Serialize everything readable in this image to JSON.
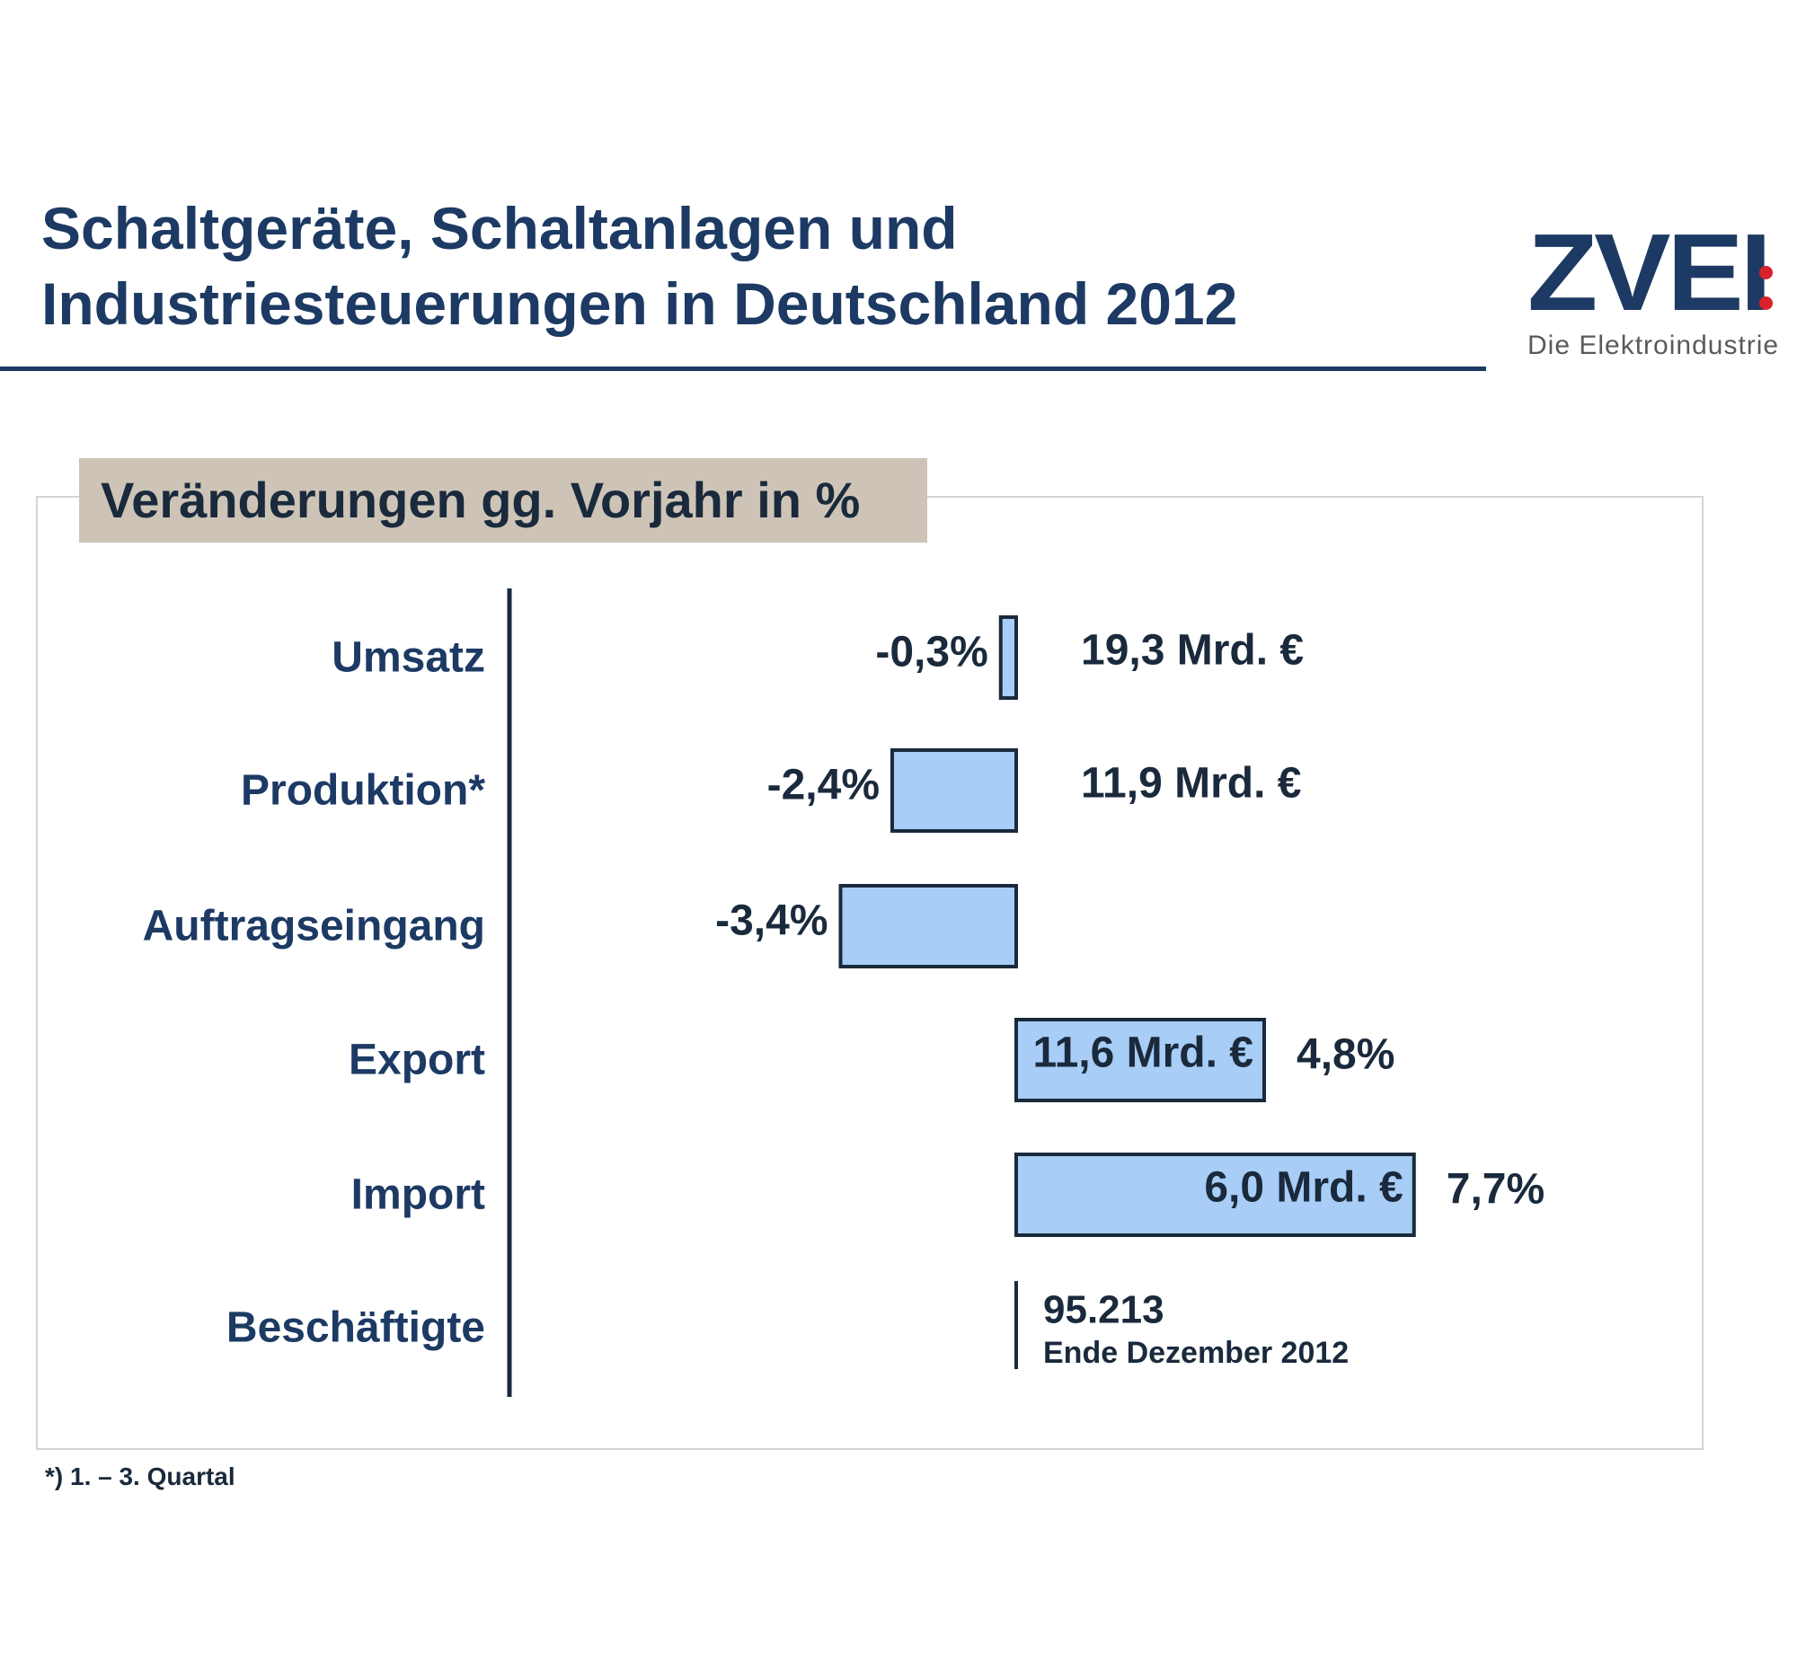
{
  "header": {
    "title_line1": "Schaltgeräte, Schaltanlagen und",
    "title_line2": "Industriesteuerungen in Deutschland 2012"
  },
  "logo": {
    "wordmark": "ZVEI",
    "tagline": "Die Elektroindustrie",
    "dot_color": "#d8222a"
  },
  "subtitle": "Veränderungen gg. Vorjahr in %",
  "footnote": "*) 1. – 3. Quartal",
  "colors": {
    "navy": "#1c3a63",
    "bar_fill": "#a8cdf6",
    "bar_stroke": "#1a2a3c",
    "subtitle_bg": "#cdc4b7"
  },
  "chart_data": {
    "type": "bar",
    "orientation": "horizontal",
    "categories": [
      "Umsatz",
      "Produktion*",
      "Auftragseingang",
      "Export",
      "Import",
      "Beschäftigte"
    ],
    "values": [
      -0.3,
      -2.4,
      -3.4,
      4.8,
      7.7,
      null
    ],
    "value_labels": [
      "-0,3%",
      "-2,4%",
      "-3,4%",
      "4,8%",
      "7,7%",
      ""
    ],
    "amount_labels": [
      "19,3 Mrd. €",
      "11,9 Mrd. €",
      "",
      "11,6 Mrd. €",
      "6,0 Mrd. €",
      "95.213"
    ],
    "amount_notes": [
      "",
      "",
      "",
      "",
      "",
      "Ende Dezember 2012"
    ],
    "xlabel": "",
    "ylabel": "",
    "legend": "none",
    "grid": false
  }
}
